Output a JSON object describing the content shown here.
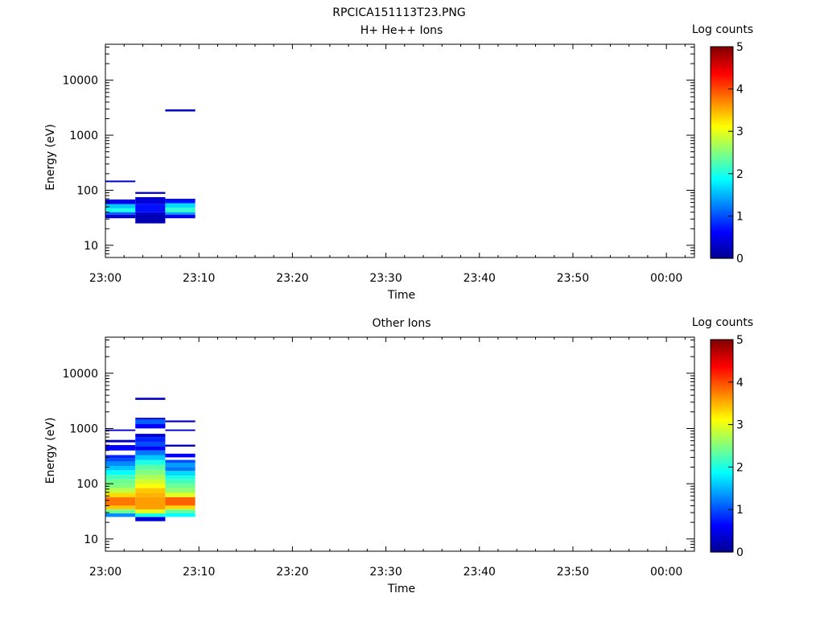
{
  "figure": {
    "filename": "RPCICA151113T23.PNG"
  },
  "colors": {
    "colormap": [
      "#00008f",
      "#0000ff",
      "#0080ff",
      "#00ffff",
      "#80ff80",
      "#ffff00",
      "#ff8000",
      "#ff0000",
      "#800000"
    ]
  },
  "chart_data": [
    {
      "type": "heatmap",
      "title": "H+ He++ Ions",
      "xlabel": "Time",
      "ylabel": "Energy (eV)",
      "xticks": [
        "23:00",
        "23:10",
        "23:20",
        "23:30",
        "23:40",
        "23:50",
        "00:00"
      ],
      "xlim": [
        "23:00",
        "00:03"
      ],
      "yscale": "log",
      "ylim": [
        6,
        45000
      ],
      "yticks": [
        "10",
        "100",
        "1000",
        "10000"
      ],
      "colorbar": {
        "label": "Log counts",
        "range": [
          0,
          5
        ],
        "ticks": [
          "0",
          "1",
          "2",
          "3",
          "4",
          "5"
        ]
      },
      "cells": [
        {
          "t0": "23:00",
          "t1": "23:03:12",
          "e0": 140,
          "e1": 150,
          "value": 0.3
        },
        {
          "t0": "23:00",
          "t1": "23:03:12",
          "e0": 56,
          "e1": 68,
          "value": 0.5
        },
        {
          "t0": "23:00",
          "t1": "23:03:12",
          "e0": 47,
          "e1": 56,
          "value": 1.6
        },
        {
          "t0": "23:00",
          "t1": "23:03:12",
          "e0": 40,
          "e1": 47,
          "value": 2.0
        },
        {
          "t0": "23:00",
          "t1": "23:03:12",
          "e0": 36,
          "e1": 40,
          "value": 1.1
        },
        {
          "t0": "23:00",
          "t1": "23:03:12",
          "e0": 31,
          "e1": 36,
          "value": 0.4
        },
        {
          "t0": "23:03:12",
          "t1": "23:06:24",
          "e0": 86,
          "e1": 93,
          "value": 0.3
        },
        {
          "t0": "23:03:12",
          "t1": "23:06:24",
          "e0": 56,
          "e1": 75,
          "value": 0.4
        },
        {
          "t0": "23:03:12",
          "t1": "23:06:24",
          "e0": 40,
          "e1": 56,
          "value": 0.7
        },
        {
          "t0": "23:03:12",
          "t1": "23:06:24",
          "e0": 34,
          "e1": 40,
          "value": 0.3
        },
        {
          "t0": "23:03:12",
          "t1": "23:06:24",
          "e0": 25,
          "e1": 34,
          "value": 0.2
        },
        {
          "t0": "23:06:24",
          "t1": "23:09:36",
          "e0": 2700,
          "e1": 2950,
          "value": 0.3
        },
        {
          "t0": "23:06:24",
          "t1": "23:09:36",
          "e0": 58,
          "e1": 70,
          "value": 0.7
        },
        {
          "t0": "23:06:24",
          "t1": "23:09:36",
          "e0": 48,
          "e1": 58,
          "value": 1.7
        },
        {
          "t0": "23:06:24",
          "t1": "23:09:36",
          "e0": 40,
          "e1": 48,
          "value": 2.1
        },
        {
          "t0": "23:06:24",
          "t1": "23:09:36",
          "e0": 36,
          "e1": 40,
          "value": 1.4
        },
        {
          "t0": "23:06:24",
          "t1": "23:09:36",
          "e0": 31,
          "e1": 36,
          "value": 0.6
        }
      ]
    },
    {
      "type": "heatmap",
      "title": "Other Ions",
      "xlabel": "Time",
      "ylabel": "Energy (eV)",
      "xticks": [
        "23:00",
        "23:10",
        "23:20",
        "23:30",
        "23:40",
        "23:50",
        "00:00"
      ],
      "xlim": [
        "23:00",
        "00:03"
      ],
      "yscale": "log",
      "ylim": [
        6,
        45000
      ],
      "yticks": [
        "10",
        "100",
        "1000",
        "10000"
      ],
      "colorbar": {
        "label": "Log counts",
        "range": [
          0,
          5
        ],
        "ticks": [
          "0",
          "1",
          "2",
          "3",
          "4",
          "5"
        ]
      },
      "cells": [
        {
          "t0": "23:00",
          "t1": "23:03:12",
          "e0": 900,
          "e1": 960,
          "value": 0.3
        },
        {
          "t0": "23:00",
          "t1": "23:03:12",
          "e0": 560,
          "e1": 620,
          "value": 0.3
        },
        {
          "t0": "23:00",
          "t1": "23:03:12",
          "e0": 400,
          "e1": 500,
          "value": 0.6
        },
        {
          "t0": "23:00",
          "t1": "23:03:12",
          "e0": 290,
          "e1": 330,
          "value": 0.8
        },
        {
          "t0": "23:00",
          "t1": "23:03:12",
          "e0": 250,
          "e1": 290,
          "value": 1.0
        },
        {
          "t0": "23:00",
          "t1": "23:03:12",
          "e0": 210,
          "e1": 250,
          "value": 1.3
        },
        {
          "t0": "23:00",
          "t1": "23:03:12",
          "e0": 175,
          "e1": 210,
          "value": 1.6
        },
        {
          "t0": "23:00",
          "t1": "23:03:12",
          "e0": 145,
          "e1": 175,
          "value": 1.9
        },
        {
          "t0": "23:00",
          "t1": "23:03:12",
          "e0": 120,
          "e1": 145,
          "value": 2.2
        },
        {
          "t0": "23:00",
          "t1": "23:03:12",
          "e0": 100,
          "e1": 120,
          "value": 2.4
        },
        {
          "t0": "23:00",
          "t1": "23:03:12",
          "e0": 83,
          "e1": 100,
          "value": 2.5
        },
        {
          "t0": "23:00",
          "t1": "23:03:12",
          "e0": 68,
          "e1": 83,
          "value": 2.8
        },
        {
          "t0": "23:00",
          "t1": "23:03:12",
          "e0": 57,
          "e1": 68,
          "value": 3.3
        },
        {
          "t0": "23:00",
          "t1": "23:03:12",
          "e0": 48,
          "e1": 57,
          "value": 3.8
        },
        {
          "t0": "23:00",
          "t1": "23:03:12",
          "e0": 40,
          "e1": 48,
          "value": 3.8
        },
        {
          "t0": "23:00",
          "t1": "23:03:12",
          "e0": 34,
          "e1": 40,
          "value": 3.4
        },
        {
          "t0": "23:00",
          "t1": "23:03:12",
          "e0": 29,
          "e1": 34,
          "value": 2.4
        },
        {
          "t0": "23:00",
          "t1": "23:03:12",
          "e0": 25,
          "e1": 29,
          "value": 1.3
        },
        {
          "t0": "23:03:12",
          "t1": "23:06:24",
          "e0": 3300,
          "e1": 3600,
          "value": 0.3
        },
        {
          "t0": "23:03:12",
          "t1": "23:06:24",
          "e0": 1450,
          "e1": 1560,
          "value": 0.4
        },
        {
          "t0": "23:03:12",
          "t1": "23:06:24",
          "e0": 1200,
          "e1": 1450,
          "value": 1.1
        },
        {
          "t0": "23:03:12",
          "t1": "23:06:24",
          "e0": 1000,
          "e1": 1200,
          "value": 0.6
        },
        {
          "t0": "23:03:12",
          "t1": "23:06:24",
          "e0": 700,
          "e1": 800,
          "value": 0.4
        },
        {
          "t0": "23:03:12",
          "t1": "23:06:24",
          "e0": 560,
          "e1": 700,
          "value": 0.8
        },
        {
          "t0": "23:03:12",
          "t1": "23:06:24",
          "e0": 470,
          "e1": 560,
          "value": 1.0
        },
        {
          "t0": "23:03:12",
          "t1": "23:06:24",
          "e0": 400,
          "e1": 470,
          "value": 0.6
        },
        {
          "t0": "23:03:12",
          "t1": "23:06:24",
          "e0": 330,
          "e1": 400,
          "value": 1.2
        },
        {
          "t0": "23:03:12",
          "t1": "23:06:24",
          "e0": 270,
          "e1": 330,
          "value": 1.6
        },
        {
          "t0": "23:03:12",
          "t1": "23:06:24",
          "e0": 220,
          "e1": 270,
          "value": 2.0
        },
        {
          "t0": "23:03:12",
          "t1": "23:06:24",
          "e0": 180,
          "e1": 220,
          "value": 2.3
        },
        {
          "t0": "23:03:12",
          "t1": "23:06:24",
          "e0": 145,
          "e1": 180,
          "value": 2.5
        },
        {
          "t0": "23:03:12",
          "t1": "23:06:24",
          "e0": 120,
          "e1": 145,
          "value": 2.7
        },
        {
          "t0": "23:03:12",
          "t1": "23:06:24",
          "e0": 100,
          "e1": 120,
          "value": 2.9
        },
        {
          "t0": "23:03:12",
          "t1": "23:06:24",
          "e0": 83,
          "e1": 100,
          "value": 3.1
        },
        {
          "t0": "23:03:12",
          "t1": "23:06:24",
          "e0": 68,
          "e1": 83,
          "value": 3.4
        },
        {
          "t0": "23:03:12",
          "t1": "23:06:24",
          "e0": 57,
          "e1": 68,
          "value": 3.5
        },
        {
          "t0": "23:03:12",
          "t1": "23:06:24",
          "e0": 34,
          "e1": 57,
          "value": 3.6
        },
        {
          "t0": "23:03:12",
          "t1": "23:06:24",
          "e0": 29,
          "e1": 34,
          "value": 3.0
        },
        {
          "t0": "23:03:12",
          "t1": "23:06:24",
          "e0": 25,
          "e1": 29,
          "value": 2.0
        },
        {
          "t0": "23:03:12",
          "t1": "23:06:24",
          "e0": 21,
          "e1": 25,
          "value": 0.4
        },
        {
          "t0": "23:06:24",
          "t1": "23:09:36",
          "e0": 1300,
          "e1": 1400,
          "value": 0.3
        },
        {
          "t0": "23:06:24",
          "t1": "23:09:36",
          "e0": 900,
          "e1": 960,
          "value": 0.3
        },
        {
          "t0": "23:06:24",
          "t1": "23:09:36",
          "e0": 470,
          "e1": 510,
          "value": 0.3
        },
        {
          "t0": "23:06:24",
          "t1": "23:09:36",
          "e0": 300,
          "e1": 350,
          "value": 0.6
        },
        {
          "t0": "23:06:24",
          "t1": "23:09:36",
          "e0": 240,
          "e1": 270,
          "value": 1.0
        },
        {
          "t0": "23:06:24",
          "t1": "23:09:36",
          "e0": 200,
          "e1": 240,
          "value": 1.4
        },
        {
          "t0": "23:06:24",
          "t1": "23:09:36",
          "e0": 170,
          "e1": 200,
          "value": 1.2
        },
        {
          "t0": "23:06:24",
          "t1": "23:09:36",
          "e0": 140,
          "e1": 170,
          "value": 1.7
        },
        {
          "t0": "23:06:24",
          "t1": "23:09:36",
          "e0": 120,
          "e1": 140,
          "value": 2.0
        },
        {
          "t0": "23:06:24",
          "t1": "23:09:36",
          "e0": 100,
          "e1": 120,
          "value": 2.2
        },
        {
          "t0": "23:06:24",
          "t1": "23:09:36",
          "e0": 83,
          "e1": 100,
          "value": 2.4
        },
        {
          "t0": "23:06:24",
          "t1": "23:09:36",
          "e0": 68,
          "e1": 83,
          "value": 2.6
        },
        {
          "t0": "23:06:24",
          "t1": "23:09:36",
          "e0": 57,
          "e1": 68,
          "value": 3.0
        },
        {
          "t0": "23:06:24",
          "t1": "23:09:36",
          "e0": 48,
          "e1": 57,
          "value": 3.9
        },
        {
          "t0": "23:06:24",
          "t1": "23:09:36",
          "e0": 40,
          "e1": 48,
          "value": 3.9
        },
        {
          "t0": "23:06:24",
          "t1": "23:09:36",
          "e0": 34,
          "e1": 40,
          "value": 3.3
        },
        {
          "t0": "23:06:24",
          "t1": "23:09:36",
          "e0": 29,
          "e1": 34,
          "value": 2.3
        },
        {
          "t0": "23:06:24",
          "t1": "23:09:36",
          "e0": 25,
          "e1": 29,
          "value": 1.9
        }
      ]
    }
  ]
}
